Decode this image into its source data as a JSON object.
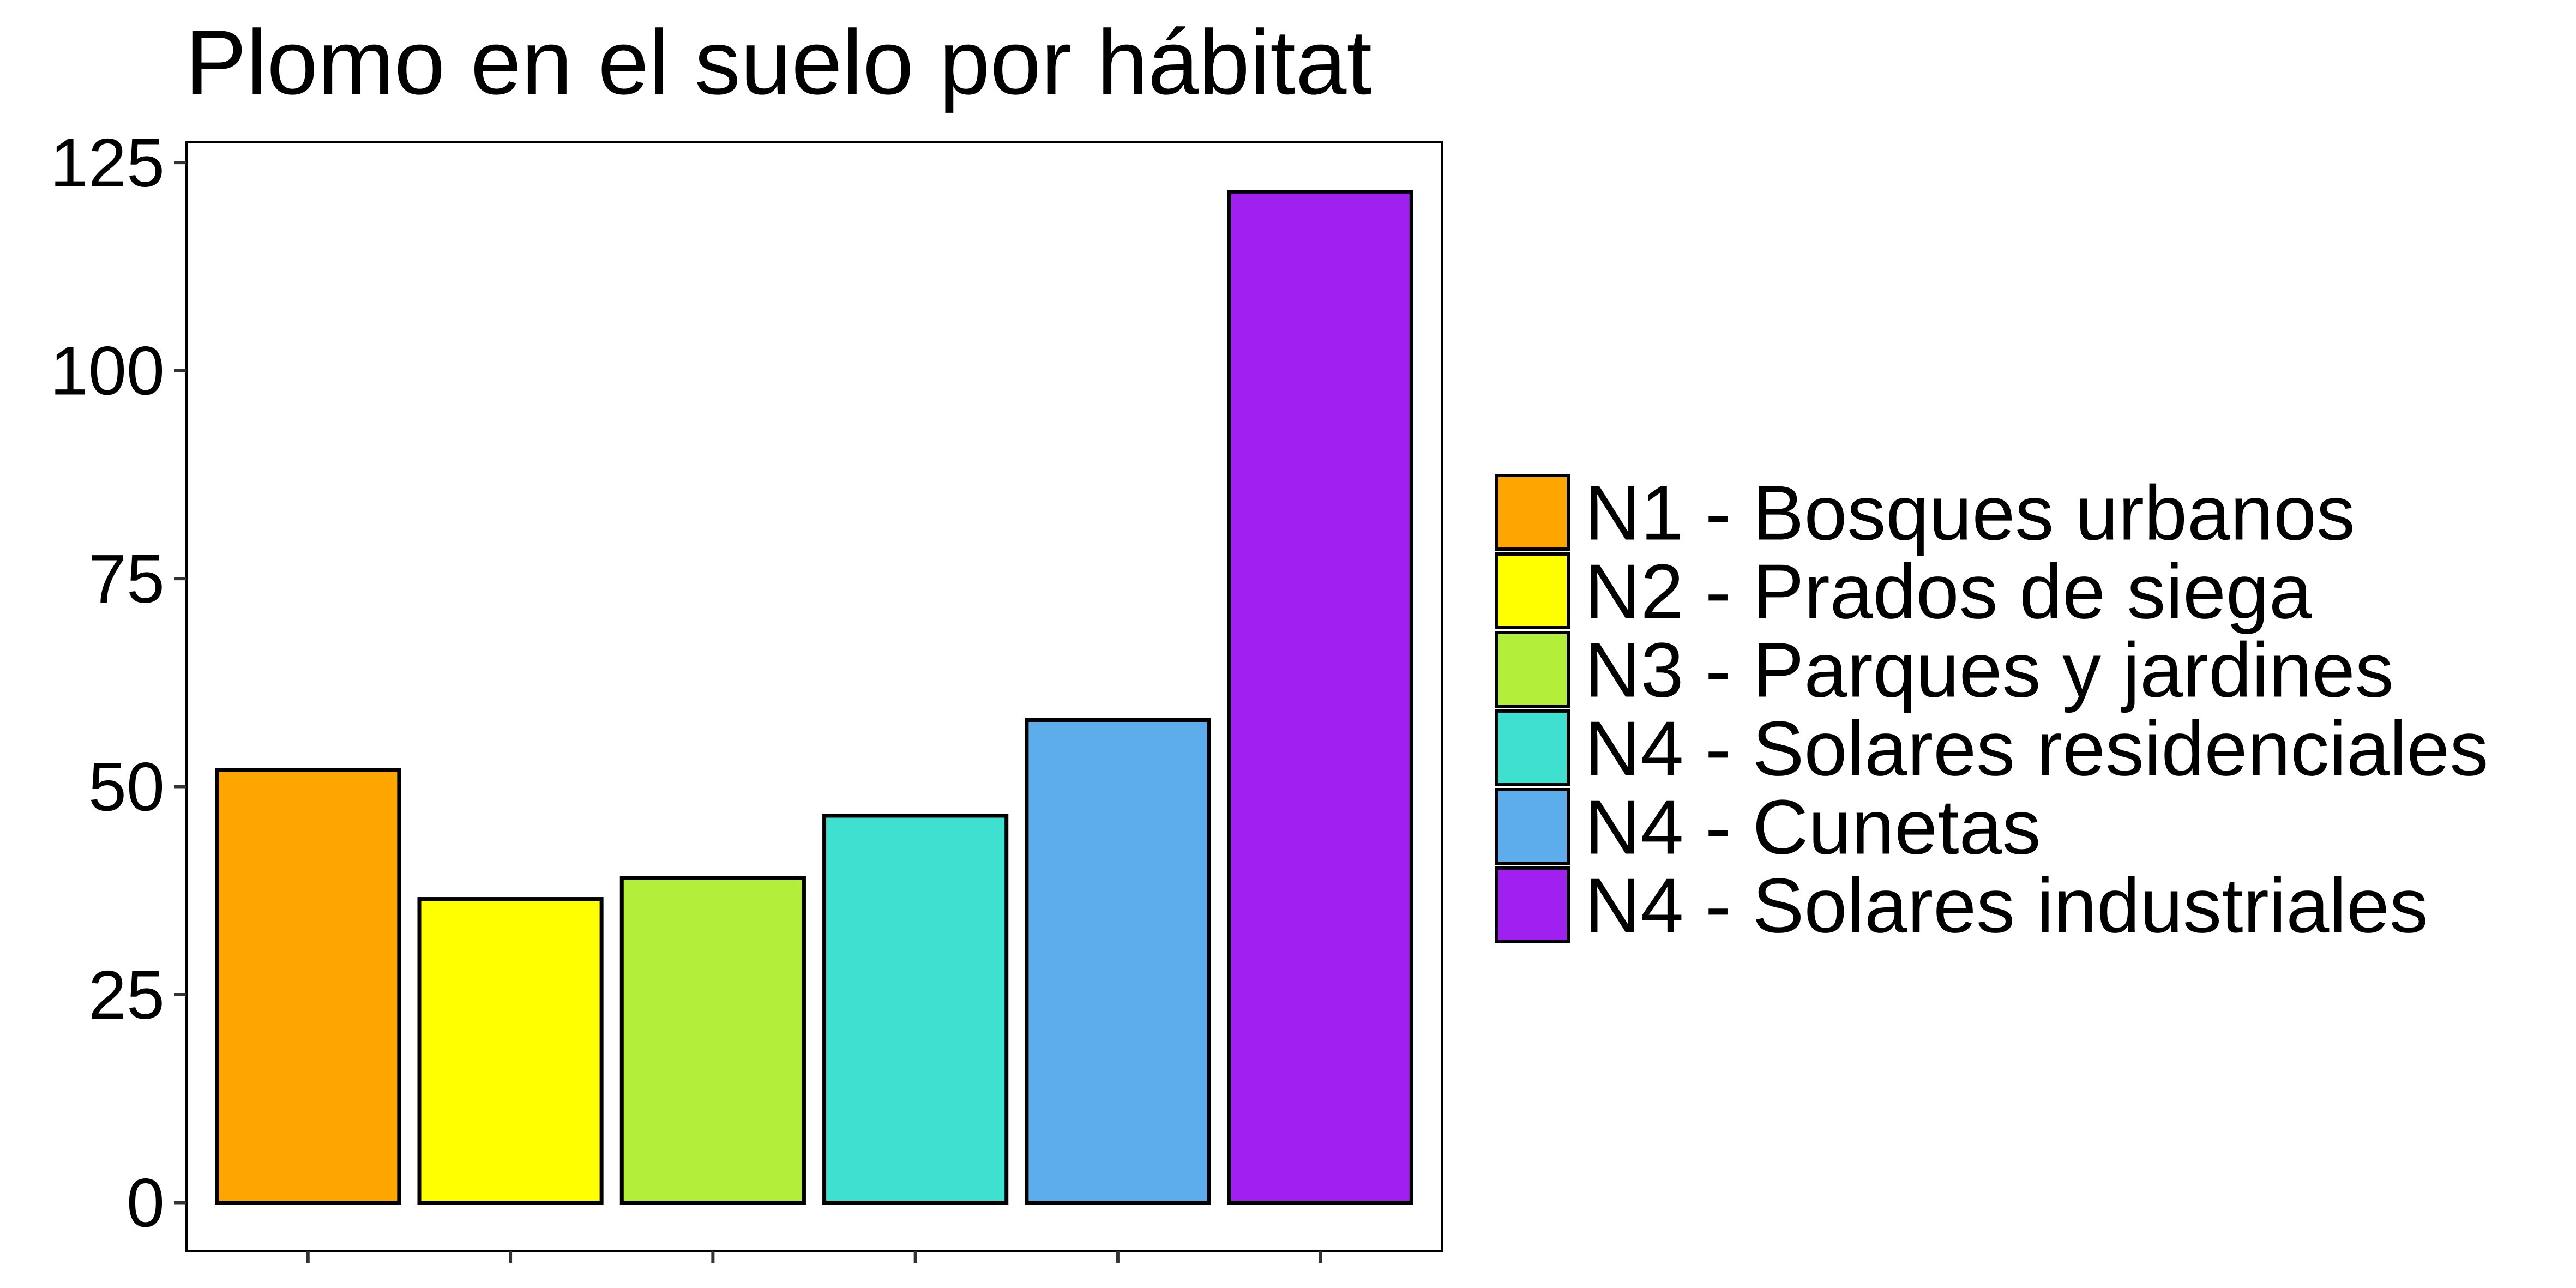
{
  "chart_data": {
    "type": "bar",
    "title": "Plomo en el suelo por hábitat",
    "xlabel": "",
    "ylabel": "",
    "categories": [
      "N1 - Bosques urbanos",
      "N2 - Prados de siega",
      "N3 - Parques y jardines",
      "N4 - Solares residenciales",
      "N4 - Cunetas",
      "N4 - Solares industriales"
    ],
    "values": [
      52,
      36.5,
      39,
      46.5,
      58,
      121.5
    ],
    "colors": [
      "#FFA500",
      "#FFFF00",
      "#B3EE3A",
      "#40E0D0",
      "#5DADEC",
      "#A020F0"
    ],
    "ylim": [
      -5.8,
      127.5
    ],
    "yticks": [
      0,
      25,
      50,
      75,
      100,
      125
    ],
    "ytick_labels": [
      "0",
      "25",
      "50",
      "75",
      "100",
      "125"
    ],
    "grid": false,
    "legend_position": "right"
  }
}
